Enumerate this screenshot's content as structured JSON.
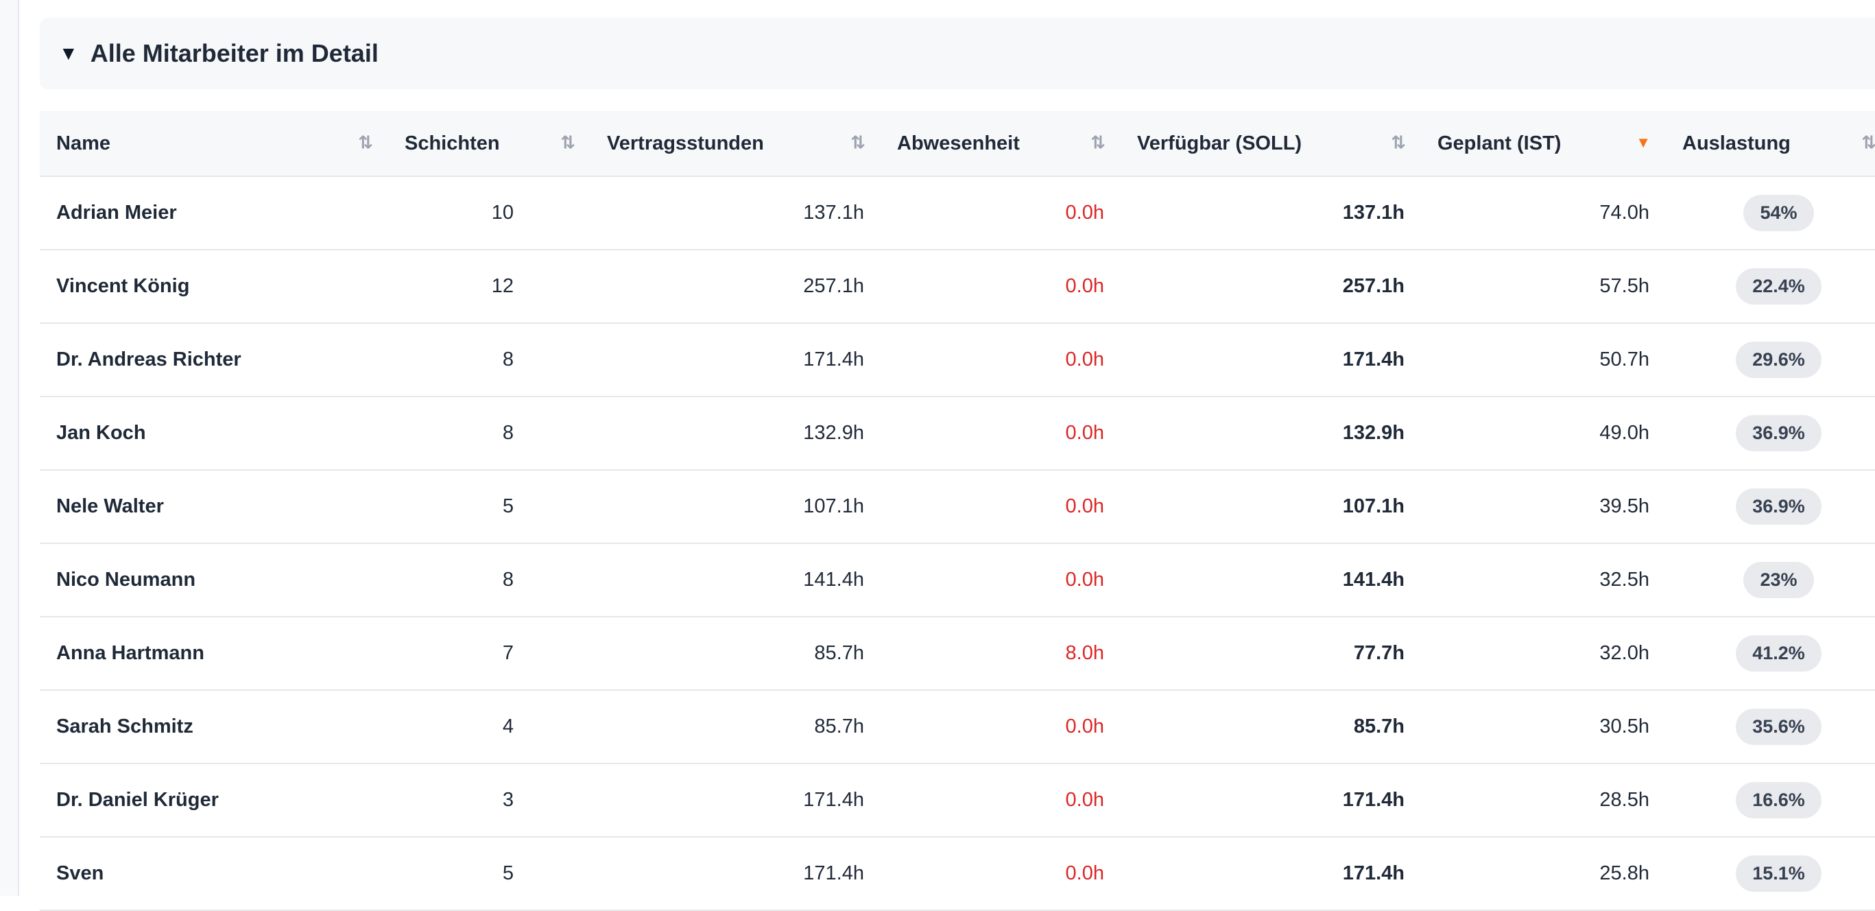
{
  "section": {
    "title": "Alle Mitarbeiter im Detail",
    "caret": "▼"
  },
  "table": {
    "headers": {
      "name": "Name",
      "shifts": "Schichten",
      "contract": "Vertragsstunden",
      "absence": "Abwesenheit",
      "available": "Verfügbar (SOLL)",
      "planned": "Geplant (IST)",
      "utilization": "Auslastung"
    },
    "sort_icons": {
      "inactive": "⇅",
      "active_desc": "▼"
    },
    "active_sort": "planned",
    "rows": [
      {
        "name": "Adrian Meier",
        "shifts": "10",
        "contract": "137.1h",
        "absence": "0.0h",
        "available": "137.1h",
        "planned": "74.0h",
        "utilization": "54%"
      },
      {
        "name": "Vincent König",
        "shifts": "12",
        "contract": "257.1h",
        "absence": "0.0h",
        "available": "257.1h",
        "planned": "57.5h",
        "utilization": "22.4%"
      },
      {
        "name": "Dr. Andreas Richter",
        "shifts": "8",
        "contract": "171.4h",
        "absence": "0.0h",
        "available": "171.4h",
        "planned": "50.7h",
        "utilization": "29.6%"
      },
      {
        "name": "Jan Koch",
        "shifts": "8",
        "contract": "132.9h",
        "absence": "0.0h",
        "available": "132.9h",
        "planned": "49.0h",
        "utilization": "36.9%"
      },
      {
        "name": "Nele Walter",
        "shifts": "5",
        "contract": "107.1h",
        "absence": "0.0h",
        "available": "107.1h",
        "planned": "39.5h",
        "utilization": "36.9%"
      },
      {
        "name": "Nico Neumann",
        "shifts": "8",
        "contract": "141.4h",
        "absence": "0.0h",
        "available": "141.4h",
        "planned": "32.5h",
        "utilization": "23%"
      },
      {
        "name": "Anna Hartmann",
        "shifts": "7",
        "contract": "85.7h",
        "absence": "8.0h",
        "available": "77.7h",
        "planned": "32.0h",
        "utilization": "41.2%"
      },
      {
        "name": "Sarah Schmitz",
        "shifts": "4",
        "contract": "85.7h",
        "absence": "0.0h",
        "available": "85.7h",
        "planned": "30.5h",
        "utilization": "35.6%"
      },
      {
        "name": "Dr. Daniel Krüger",
        "shifts": "3",
        "contract": "171.4h",
        "absence": "0.0h",
        "available": "171.4h",
        "planned": "28.5h",
        "utilization": "16.6%"
      },
      {
        "name": "Sven",
        "shifts": "5",
        "contract": "171.4h",
        "absence": "0.0h",
        "available": "171.4h",
        "planned": "25.8h",
        "utilization": "15.1%"
      }
    ]
  },
  "colors": {
    "absence_text": "#dc2626",
    "active_sort": "#f97316",
    "badge_bg": "#e9eaee"
  }
}
